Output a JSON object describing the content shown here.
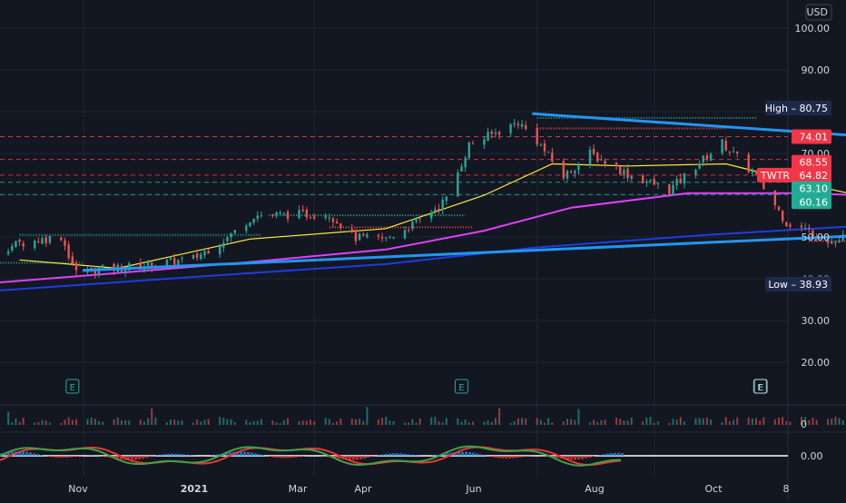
{
  "currency": "USD",
  "symbol": "TWTR",
  "chart_data": [
    {
      "type": "candlestick",
      "symbol": "TWTR",
      "currency": "USD",
      "price_axis_ticks": [
        "100.00",
        "90.00",
        "70.00",
        "50.00",
        "30.00",
        "20.00"
      ],
      "partially_hidden_ticks": [
        "80.00",
        "60.00",
        "40.00"
      ],
      "time_axis_ticks": [
        "Nov",
        "2021",
        "Mar",
        "Apr",
        "Jun",
        "Aug",
        "Oct",
        "8"
      ],
      "ylim": [
        14,
        104
      ],
      "xlim": [
        "2020-09-21",
        "2021-10-15"
      ],
      "high_marker": {
        "label": "High",
        "value": "80.75"
      },
      "low_marker": {
        "label": "Low",
        "value": "38.93"
      },
      "price_labels": [
        {
          "value": "74.01",
          "color": "#f23645"
        },
        {
          "value": "68.55",
          "color": "#f23645"
        },
        {
          "value": "64.82",
          "color": "#f23645",
          "label": "TWTR"
        },
        {
          "value": "63.10",
          "color": "#22ab94"
        },
        {
          "value": "60.16",
          "color": "#22ab94"
        }
      ],
      "dashed_levels": [
        {
          "value": 74.01,
          "color": "#f23645"
        },
        {
          "value": 68.55,
          "color": "#f23645"
        },
        {
          "value": 64.82,
          "color": "#f23645"
        },
        {
          "value": 63.1,
          "color": "#22ab94"
        },
        {
          "value": 60.16,
          "color": "#22ab94"
        }
      ],
      "price_path": [
        [
          "2020-09-21",
          43.5
        ],
        [
          "2020-10-05",
          45.5
        ],
        [
          "2020-10-15",
          48.5
        ],
        [
          "2020-10-26",
          50.2
        ],
        [
          "2020-10-30",
          41.4
        ],
        [
          "2020-11-04",
          42.2
        ],
        [
          "2020-11-16",
          43.0
        ],
        [
          "2020-11-30",
          44.8
        ],
        [
          "2020-12-10",
          50.5
        ],
        [
          "2020-12-16",
          55.2
        ],
        [
          "2021-01-05",
          55.5
        ],
        [
          "2021-01-12",
          49.8
        ],
        [
          "2021-01-20",
          49.5
        ],
        [
          "2021-01-29",
          54.0
        ],
        [
          "2021-02-05",
          59.0
        ],
        [
          "2021-02-11",
          72.0
        ],
        [
          "2021-02-24",
          77.5
        ],
        [
          "2021-03-01",
          73.0
        ],
        [
          "2021-03-08",
          64.5
        ],
        [
          "2021-03-15",
          70.0
        ],
        [
          "2021-03-25",
          65.0
        ],
        [
          "2021-04-05",
          61.2
        ],
        [
          "2021-04-12",
          67.0
        ],
        [
          "2021-04-19",
          72.5
        ],
        [
          "2021-04-28",
          64.5
        ],
        [
          "2021-05-06",
          53.5
        ],
        [
          "2021-05-12",
          51.5
        ],
        [
          "2021-05-19",
          48.5
        ],
        [
          "2021-05-26",
          53.5
        ],
        [
          "2021-06-07",
          57.5
        ],
        [
          "2021-06-18",
          59.0
        ],
        [
          "2021-06-28",
          61.5
        ],
        [
          "2021-07-06",
          68.0
        ],
        [
          "2021-07-14",
          70.5
        ],
        [
          "2021-07-22",
          69.0
        ],
        [
          "2021-07-27",
          72.0
        ],
        [
          "2021-08-02",
          68.5
        ],
        [
          "2021-08-06",
          65.5
        ],
        [
          "2021-08-09",
          64.8
        ]
      ],
      "moving_averages": [
        {
          "color": "#ffeb3b",
          "points": [
            [
              "2020-10-15",
              44.5
            ],
            [
              "2020-11-10",
              42.5
            ],
            [
              "2020-12-15",
              49.5
            ],
            [
              "2021-01-20",
              52.0
            ],
            [
              "2021-02-15",
              60.0
            ],
            [
              "2021-03-05",
              67.5
            ],
            [
              "2021-03-25",
              67.0
            ],
            [
              "2021-04-20",
              67.5
            ],
            [
              "2021-05-10",
              63.0
            ],
            [
              "2021-06-01",
              58.5
            ],
            [
              "2021-06-25",
              60.0
            ],
            [
              "2021-07-15",
              66.0
            ],
            [
              "2021-08-09",
              67.0
            ]
          ]
        },
        {
          "color": "#e040fb",
          "points": [
            [
              "2020-09-21",
              37.8
            ],
            [
              "2020-11-05",
              41.0
            ],
            [
              "2020-12-15",
              44.0
            ],
            [
              "2021-01-20",
              47.0
            ],
            [
              "2021-02-15",
              51.5
            ],
            [
              "2021-03-10",
              57.0
            ],
            [
              "2021-04-10",
              60.5
            ],
            [
              "2021-05-10",
              60.5
            ],
            [
              "2021-06-10",
              59.5
            ],
            [
              "2021-07-10",
              61.5
            ],
            [
              "2021-08-09",
              64.0
            ]
          ]
        },
        {
          "color": "#1e3de0",
          "points": [
            [
              "2020-09-21",
              36.0
            ],
            [
              "2020-12-01",
              40.5
            ],
            [
              "2021-01-20",
              43.5
            ],
            [
              "2021-03-01",
              47.5
            ],
            [
              "2021-04-15",
              50.5
            ],
            [
              "2021-06-01",
              53.0
            ],
            [
              "2021-07-15",
              56.0
            ],
            [
              "2021-08-09",
              59.0
            ]
          ]
        }
      ],
      "trendlines": [
        {
          "color": "#2196f3",
          "from": [
            "2020-11-01",
            42.0
          ],
          "to": [
            "2021-08-25",
            54.0
          ]
        },
        {
          "color": "#2196f3",
          "from": [
            "2021-02-28",
            79.5
          ],
          "to": [
            "2021-08-20",
            68.9
          ]
        }
      ],
      "target_box": {
        "from": "2021-08-10",
        "to": "2021-09-25",
        "top": 74.01,
        "bottom": 64.82
      },
      "volume": {
        "zero_label": "0"
      },
      "oscillator": {
        "zero_label": "0.00"
      },
      "earnings_markers": {
        "label": "E",
        "dates": [
          "2020-10-29",
          "2021-02-09",
          "2021-04-29",
          "2021-07-22",
          "2021-10-15"
        ]
      }
    }
  ]
}
